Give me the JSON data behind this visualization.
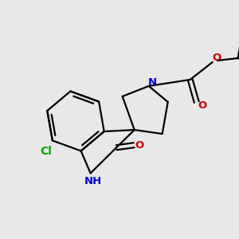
{
  "bg_color": "#e8e8e8",
  "bond_color": "#000000",
  "N_color": "#0000cc",
  "O_color": "#cc0000",
  "Cl_color": "#00aa00",
  "line_width": 1.6,
  "font_size": 9.5,
  "figsize": [
    3.0,
    3.0
  ],
  "dpi": 100,
  "xlim": [
    0,
    300
  ],
  "ylim": [
    0,
    300
  ]
}
